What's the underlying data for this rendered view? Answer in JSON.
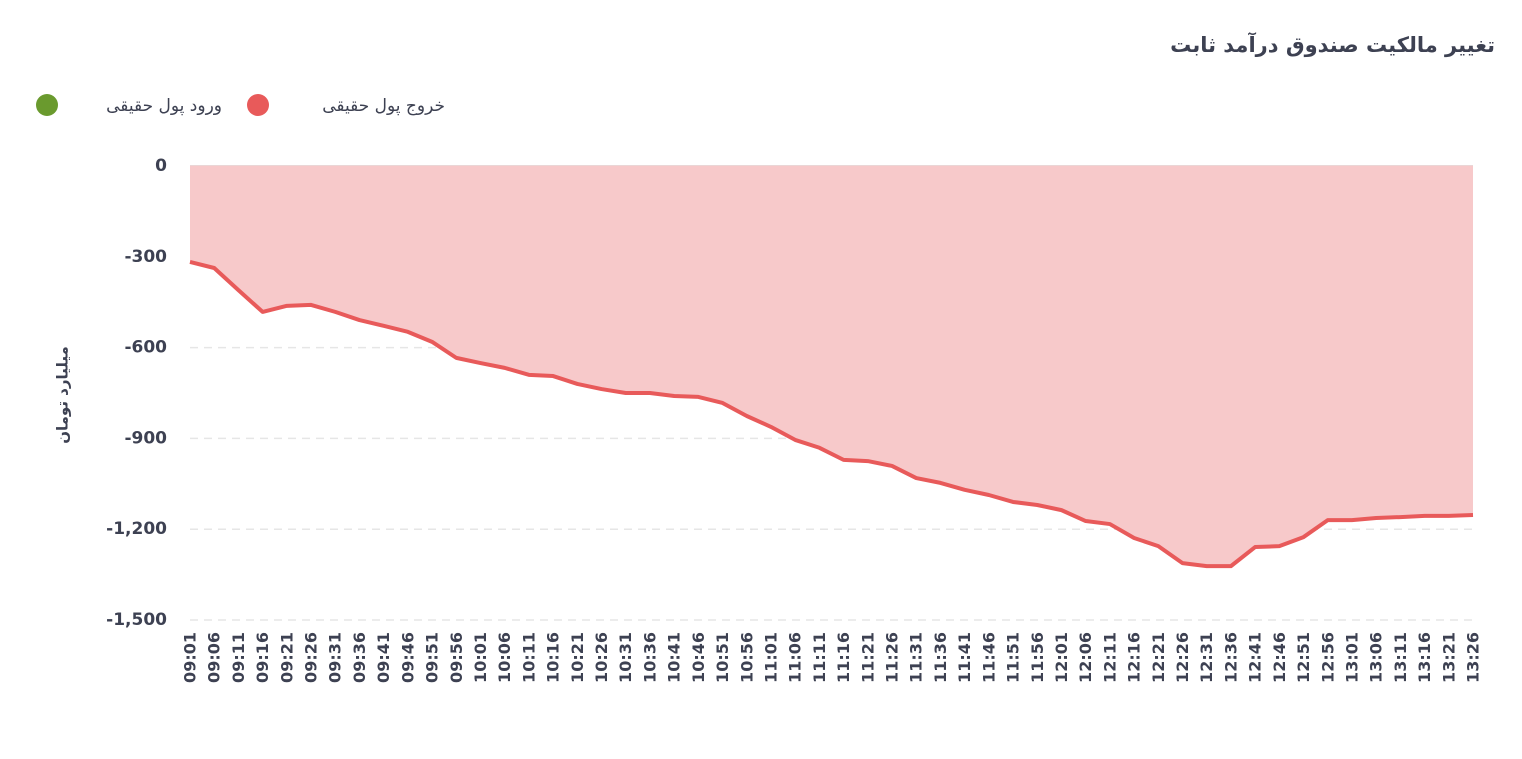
{
  "chart_data": {
    "type": "area",
    "title": "تغییر مالکیت صندوق درآمد ثابت",
    "y_label": "میلیارد تومان",
    "categories": [
      "09:01",
      "09:06",
      "09:11",
      "09:16",
      "09:21",
      "09:26",
      "09:31",
      "09:36",
      "09:41",
      "09:46",
      "09:51",
      "09:56",
      "10:01",
      "10:06",
      "10:11",
      "10:16",
      "10:21",
      "10:26",
      "10:31",
      "10:36",
      "10:41",
      "10:46",
      "10:51",
      "10:56",
      "11:01",
      "11:06",
      "11:11",
      "11:16",
      "11:21",
      "11:26",
      "11:31",
      "11:36",
      "11:41",
      "11:46",
      "11:51",
      "11:56",
      "12:01",
      "12:06",
      "12:11",
      "12:16",
      "12:21",
      "12:26",
      "12:31",
      "12:36",
      "12:41",
      "12:46",
      "12:51",
      "12:56",
      "13:01",
      "13:06",
      "13:11",
      "13:16",
      "13:21",
      "13:26"
    ],
    "series": [
      {
        "name": "خروج پول حقیقی",
        "color": "#e85a5a",
        "fill": "#f7c9ca",
        "values": [
          -317,
          -337,
          -410,
          -482,
          -462,
          -459,
          -482,
          -509,
          -528,
          -548,
          -581,
          -634,
          -651,
          -667,
          -690,
          -694,
          -720,
          -737,
          -750,
          -750,
          -760,
          -763,
          -783,
          -826,
          -862,
          -905,
          -931,
          -971,
          -975,
          -991,
          -1031,
          -1047,
          -1070,
          -1087,
          -1110,
          -1120,
          -1137,
          -1173,
          -1183,
          -1229,
          -1256,
          -1312,
          -1322,
          -1322,
          -1259,
          -1256,
          -1226,
          -1170,
          -1170,
          -1163,
          -1160,
          -1156,
          -1156,
          -1153
        ]
      },
      {
        "name": "ورود پول حقیقی",
        "color": "#6a9a2e",
        "values": [
          null,
          null,
          null,
          null,
          null,
          null,
          null,
          null,
          null,
          null,
          null,
          null,
          null,
          null,
          null,
          null,
          null,
          null,
          null,
          null,
          null,
          null,
          null,
          null,
          null,
          null,
          null,
          null,
          null,
          null,
          null,
          null,
          null,
          null,
          null,
          null,
          null,
          null,
          null,
          null,
          null,
          null,
          null,
          null,
          null,
          null,
          null,
          null,
          null,
          null,
          null,
          null,
          null,
          null
        ]
      }
    ],
    "ylim": [
      -1500,
      0
    ],
    "yticks": [
      0,
      -300,
      -600,
      -900,
      {
        "value": -1200,
        "label": "-1,200"
      },
      {
        "value": -1500,
        "label": "-1,500"
      }
    ],
    "grid": true
  }
}
